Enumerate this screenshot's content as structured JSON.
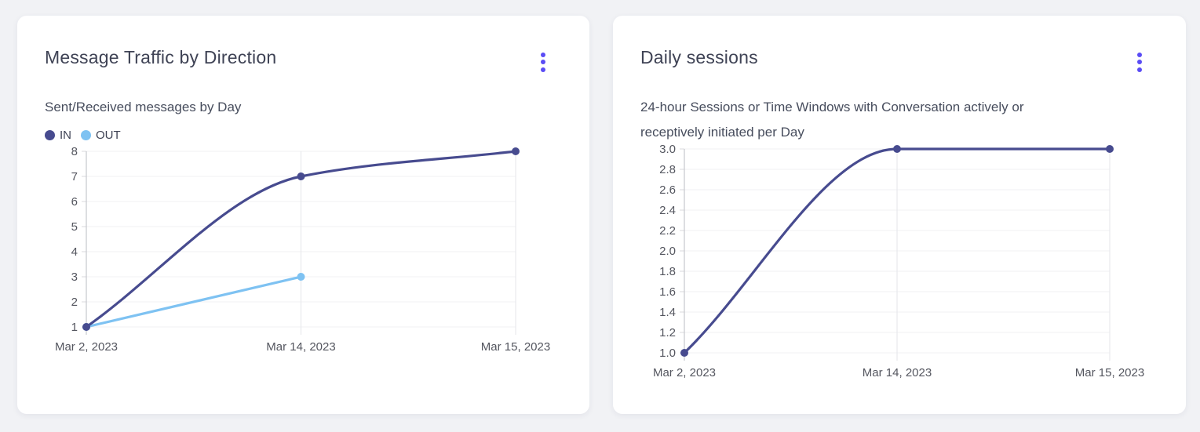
{
  "colors": {
    "page_bg": "#f1f2f5",
    "card_bg": "#ffffff",
    "accent_menu": "#5a4cf5",
    "title_text": "#3f4355",
    "subtitle_text": "#474d5d",
    "grid_line": "#f0f0f3",
    "vgrid_line": "#e5e6ea",
    "axis_line": "#c6c7cd",
    "tick_line": "#d8d9de",
    "tick_label": "#54565f"
  },
  "cards": [
    {
      "title": "Message Traffic by Direction",
      "subtitle": "Sent/Received messages by Day",
      "menu_icon": "kebab-menu-icon"
    },
    {
      "title": "Daily sessions",
      "subtitle": "24-hour Sessions or Time Windows with Conversation actively or receptively initiated per Day",
      "menu_icon": "kebab-menu-icon"
    }
  ],
  "chart_data": [
    {
      "type": "line",
      "title": "Message Traffic by Direction",
      "subtitle": "Sent/Received messages by Day",
      "categories": [
        "Mar 2, 2023",
        "Mar 14, 2023",
        "Mar 15, 2023"
      ],
      "series": [
        {
          "name": "IN",
          "color": "#474b8f",
          "values": [
            1,
            7,
            8
          ]
        },
        {
          "name": "OUT",
          "color": "#7ec2f2",
          "values": [
            1,
            3,
            null
          ]
        }
      ],
      "ylim": [
        1,
        8
      ],
      "ytick_values": [
        1,
        2,
        3,
        4,
        5,
        6,
        7,
        8
      ],
      "ytick_labels": [
        "1",
        "2",
        "3",
        "4",
        "5",
        "6",
        "7",
        "8"
      ],
      "grid": true,
      "legend_position": "top-left",
      "curve": "monotone"
    },
    {
      "type": "line",
      "title": "Daily sessions",
      "subtitle": "24-hour Sessions or Time Windows with Conversation actively or receptively initiated per Day",
      "categories": [
        "Mar 2, 2023",
        "Mar 14, 2023",
        "Mar 15, 2023"
      ],
      "series": [
        {
          "name": "Daily sessions",
          "color": "#474b8f",
          "values": [
            1.0,
            3.0,
            3.0
          ]
        }
      ],
      "ylim": [
        1.0,
        3.0
      ],
      "ytick_values": [
        1.0,
        1.2,
        1.4,
        1.6,
        1.8,
        2.0,
        2.2,
        2.4,
        2.6,
        2.8,
        3.0
      ],
      "ytick_labels": [
        "1.0",
        "1.2",
        "1.4",
        "1.6",
        "1.8",
        "2.0",
        "2.2",
        "2.4",
        "2.6",
        "2.8",
        "3.0"
      ],
      "grid": true,
      "legend_position": "none",
      "curve": "monotone"
    }
  ]
}
